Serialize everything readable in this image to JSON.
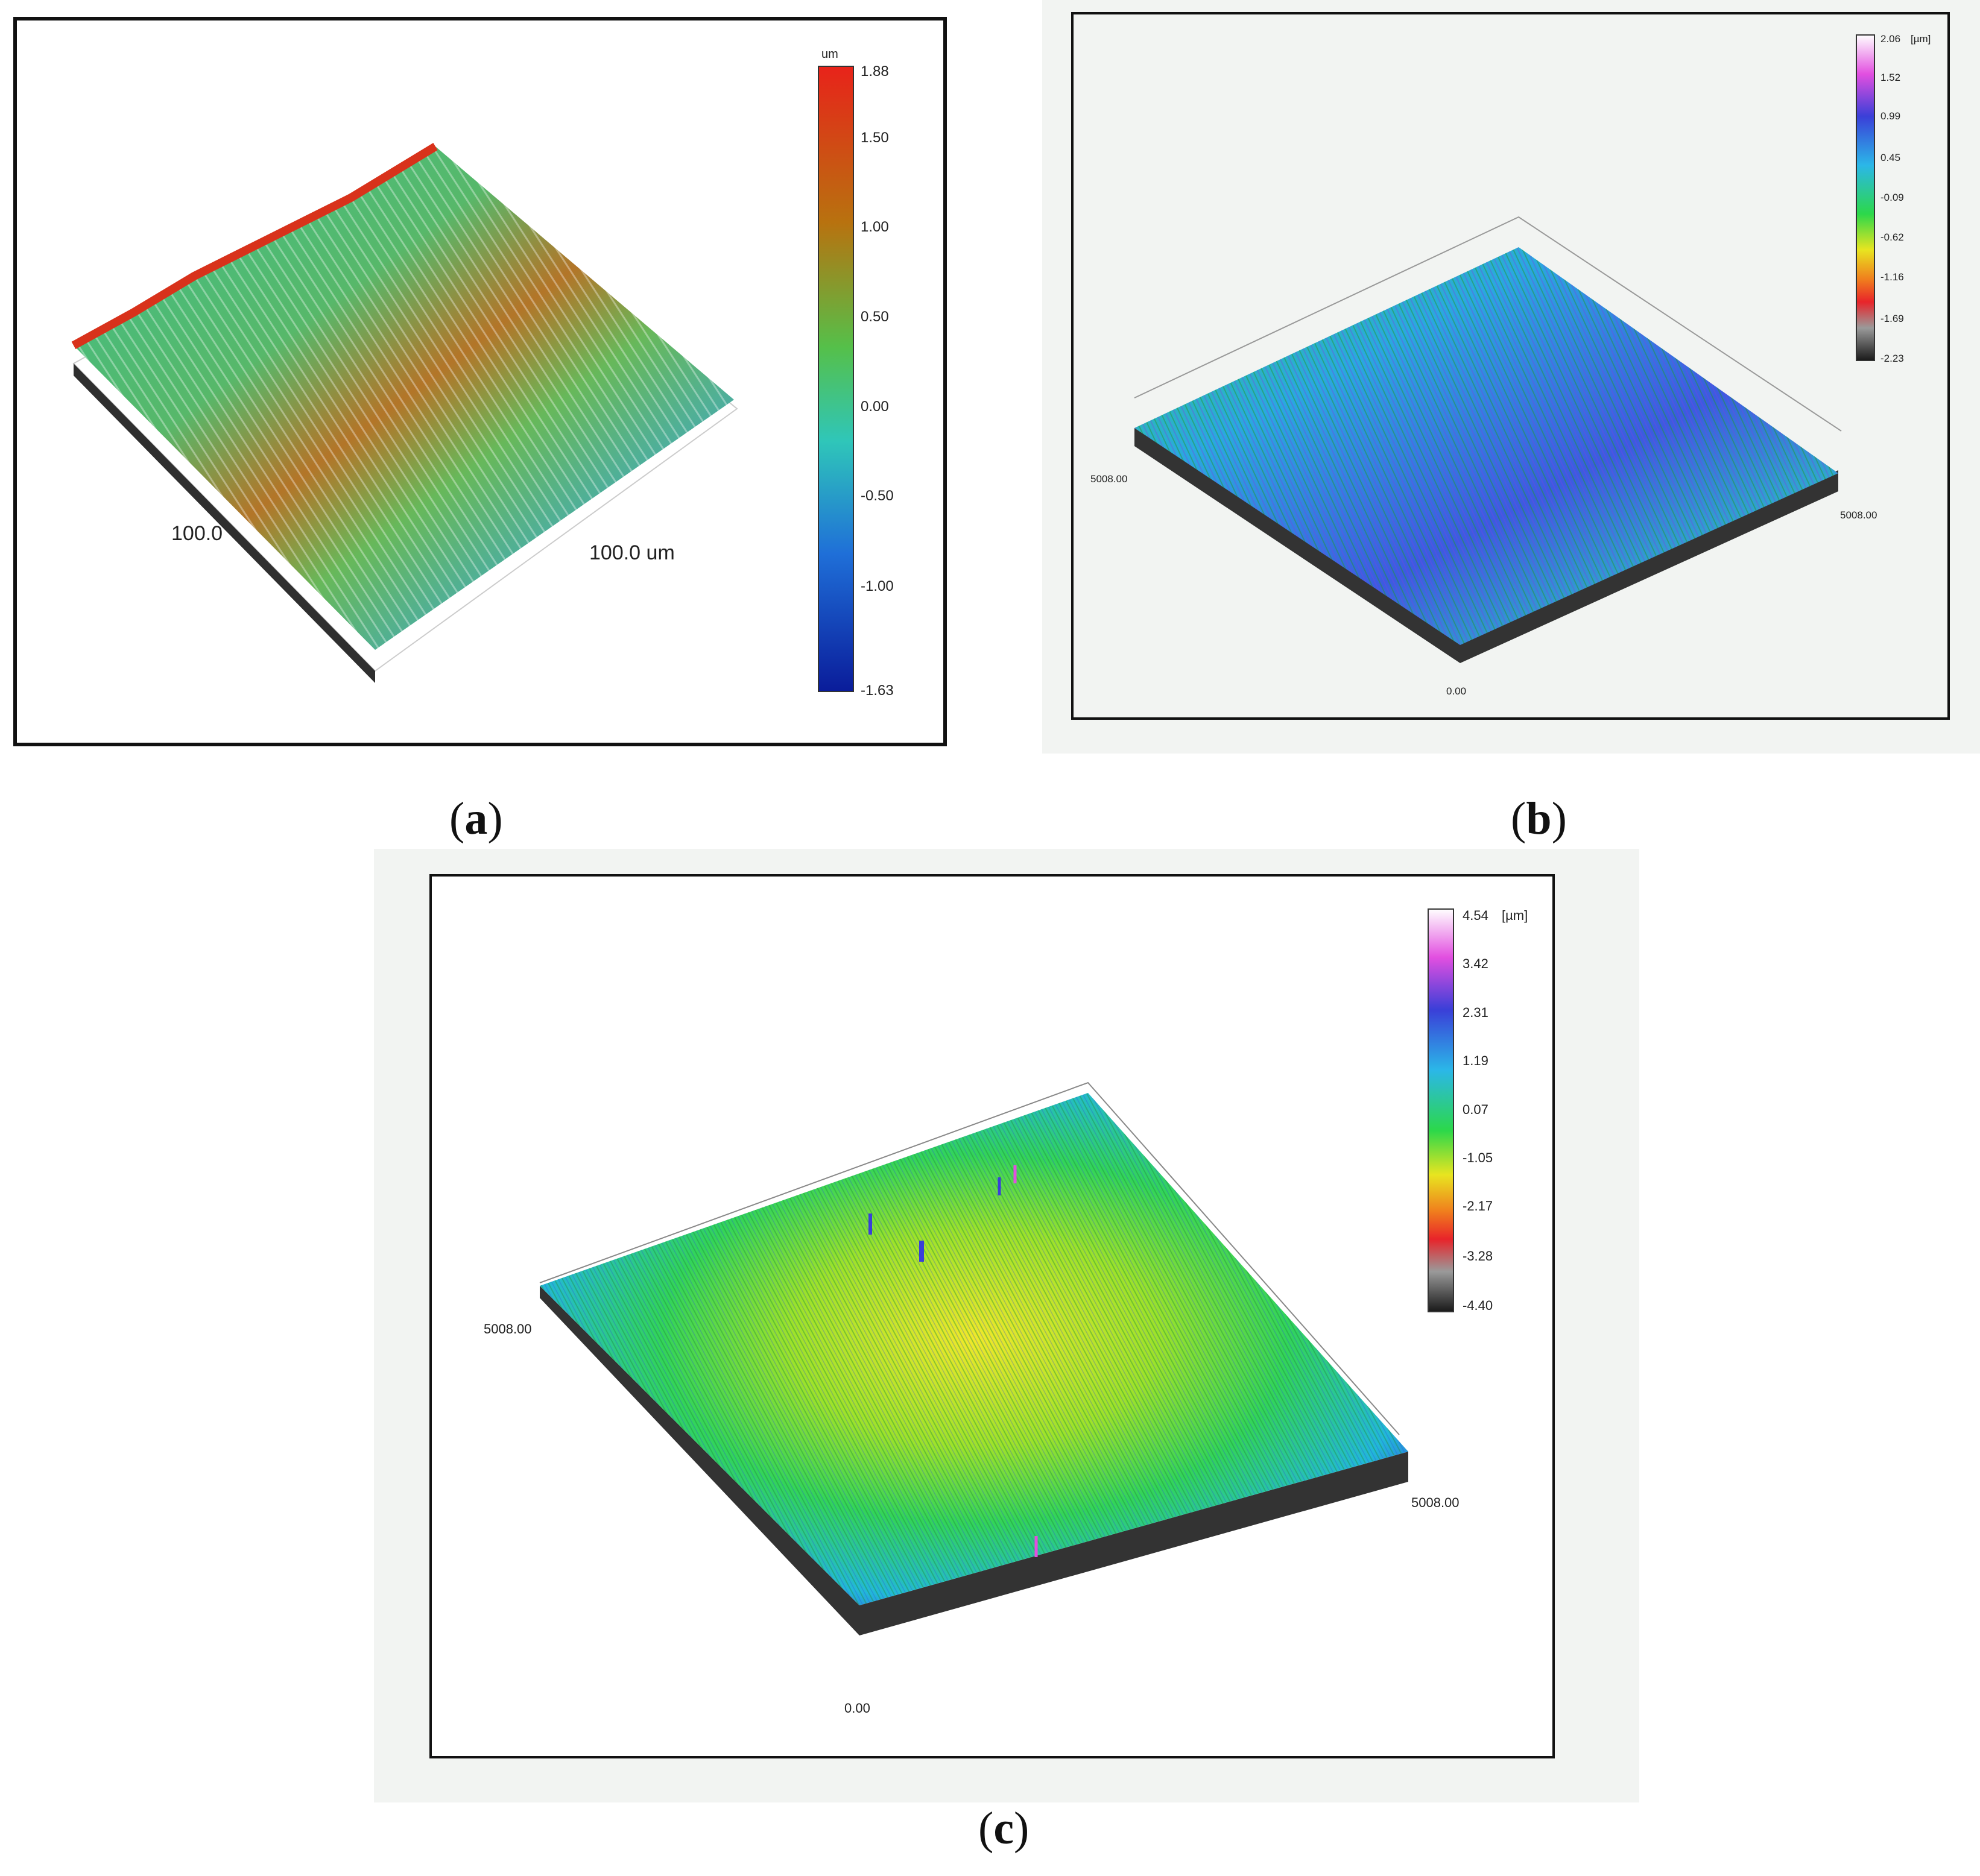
{
  "panels": [
    {
      "id": "a",
      "caption": "a",
      "axis_x_label": "100.0",
      "axis_y_label": "100.0 um",
      "colorbar_unit": "um",
      "colorbar_ticks": [
        "1.88",
        "1.50",
        "1.00",
        "0.50",
        "0.00",
        "-0.50",
        "-1.00",
        "-1.63"
      ]
    },
    {
      "id": "b",
      "caption": "b",
      "corner_left": "5008.00",
      "corner_right": "5008.00",
      "corner_origin": "0.00",
      "colorbar_unit": "[µm]",
      "colorbar_ticks": [
        "2.06",
        "1.52",
        "0.99",
        "0.45",
        "-0.09",
        "-0.62",
        "-1.16",
        "-1.69",
        "-2.23"
      ]
    },
    {
      "id": "c",
      "caption": "c",
      "corner_left": "5008.00",
      "corner_right": "5008.00",
      "corner_origin": "0.00",
      "colorbar_unit": "[µm]",
      "colorbar_ticks": [
        "4.54",
        "3.42",
        "2.31",
        "1.19",
        "0.07",
        "-1.05",
        "-2.17",
        "-3.28",
        "-4.40"
      ]
    }
  ],
  "colors": {
    "frame": "#111111",
    "panel_bg_bc": "#f2f4f2",
    "surface_side": "#3a3a3a"
  }
}
